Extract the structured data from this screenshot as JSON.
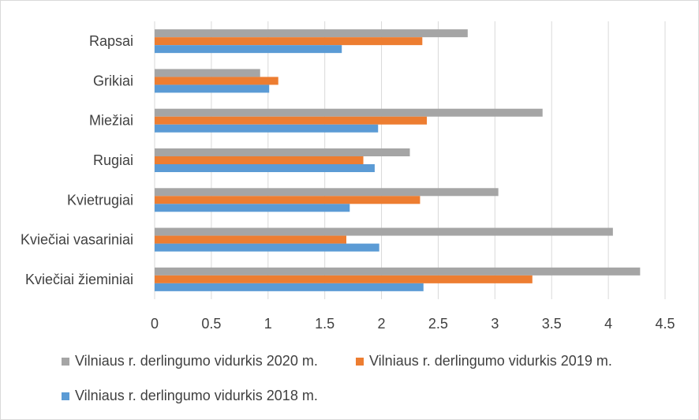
{
  "chart_data": {
    "type": "bar",
    "orientation": "horizontal",
    "title": "",
    "xlabel": "",
    "ylabel": "",
    "categories": [
      "Kviečiai žieminiai",
      "Kviečiai vasariniai",
      "Kvietrugiai",
      "Rugiai",
      "Miežiai",
      "Grikiai",
      "Rapsai"
    ],
    "series": [
      {
        "name": "Vilniaus r. derlingumo vidurkis 2020 m.",
        "color": "#a5a5a5",
        "values": [
          4.28,
          4.04,
          3.03,
          2.25,
          3.42,
          0.93,
          2.76
        ]
      },
      {
        "name": "Vilniaus r. derlingumo vidurkis 2019 m.",
        "color": "#ed7d31",
        "values": [
          3.33,
          1.69,
          2.34,
          1.84,
          2.4,
          1.09,
          2.36
        ]
      },
      {
        "name": "Vilniaus r. derlingumo vidurkis 2018 m.",
        "color": "#5b9bd5",
        "values": [
          2.37,
          1.98,
          1.72,
          1.94,
          1.97,
          1.01,
          1.65
        ]
      }
    ],
    "xlim": [
      0,
      4.5
    ],
    "xticks": [
      "0",
      "0.5",
      "1",
      "1.5",
      "2",
      "2.5",
      "3",
      "3.5",
      "4",
      "4.5"
    ],
    "grid": true,
    "legend_position": "bottom"
  }
}
